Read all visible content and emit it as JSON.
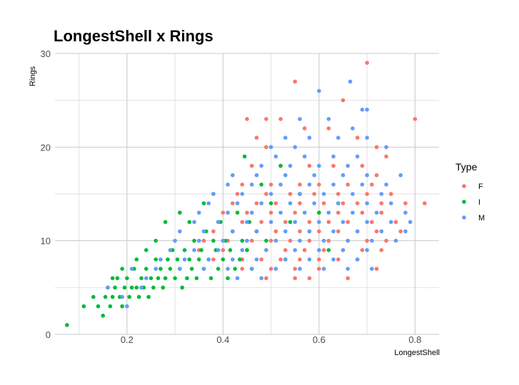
{
  "chart_data": {
    "type": "scatter",
    "title": "LongestShell x Rings",
    "xlabel": "LongestShell",
    "ylabel": "Rings",
    "xlim": [
      0.05,
      0.85
    ],
    "ylim": [
      0,
      30
    ],
    "x_ticks": [
      0.2,
      0.4,
      0.6,
      0.8
    ],
    "x_tick_labels": [
      "0.2",
      "0.4",
      "0.6",
      "0.8"
    ],
    "y_ticks": [
      0,
      10,
      20,
      30
    ],
    "y_tick_labels": [
      "0",
      "10",
      "20",
      "30"
    ],
    "grid": true,
    "legend": {
      "title": "Type",
      "position": "right"
    },
    "series": [
      {
        "name": "F",
        "color": "#f8766d",
        "points": [
          [
            0.55,
            27
          ],
          [
            0.7,
            29
          ],
          [
            0.8,
            23
          ],
          [
            0.82,
            14
          ],
          [
            0.65,
            25
          ],
          [
            0.45,
            23
          ],
          [
            0.49,
            23
          ],
          [
            0.52,
            23
          ],
          [
            0.47,
            21
          ],
          [
            0.49,
            20
          ],
          [
            0.57,
            22
          ],
          [
            0.62,
            22
          ],
          [
            0.68,
            21
          ],
          [
            0.72,
            20
          ],
          [
            0.74,
            19
          ],
          [
            0.46,
            18
          ],
          [
            0.52,
            18
          ],
          [
            0.58,
            18
          ],
          [
            0.63,
            18
          ],
          [
            0.69,
            18
          ],
          [
            0.72,
            17
          ],
          [
            0.44,
            16
          ],
          [
            0.5,
            16
          ],
          [
            0.56,
            16
          ],
          [
            0.6,
            16
          ],
          [
            0.66,
            16
          ],
          [
            0.71,
            16
          ],
          [
            0.43,
            15
          ],
          [
            0.49,
            15
          ],
          [
            0.54,
            15
          ],
          [
            0.59,
            15
          ],
          [
            0.64,
            15
          ],
          [
            0.7,
            15
          ],
          [
            0.75,
            15
          ],
          [
            0.42,
            14
          ],
          [
            0.47,
            14
          ],
          [
            0.51,
            14
          ],
          [
            0.56,
            14
          ],
          [
            0.61,
            14
          ],
          [
            0.65,
            14
          ],
          [
            0.68,
            14
          ],
          [
            0.73,
            14
          ],
          [
            0.78,
            14
          ],
          [
            0.4,
            13
          ],
          [
            0.45,
            13
          ],
          [
            0.5,
            13
          ],
          [
            0.55,
            13
          ],
          [
            0.6,
            13
          ],
          [
            0.64,
            13
          ],
          [
            0.69,
            13
          ],
          [
            0.73,
            13
          ],
          [
            0.39,
            12
          ],
          [
            0.44,
            12
          ],
          [
            0.48,
            12
          ],
          [
            0.53,
            12
          ],
          [
            0.58,
            12
          ],
          [
            0.62,
            12
          ],
          [
            0.66,
            12
          ],
          [
            0.71,
            12
          ],
          [
            0.76,
            12
          ],
          [
            0.38,
            11
          ],
          [
            0.42,
            11
          ],
          [
            0.47,
            11
          ],
          [
            0.51,
            11
          ],
          [
            0.56,
            11
          ],
          [
            0.6,
            11
          ],
          [
            0.64,
            11
          ],
          [
            0.68,
            11
          ],
          [
            0.72,
            11
          ],
          [
            0.77,
            11
          ],
          [
            0.36,
            10
          ],
          [
            0.41,
            10
          ],
          [
            0.46,
            10
          ],
          [
            0.5,
            10
          ],
          [
            0.54,
            10
          ],
          [
            0.58,
            10
          ],
          [
            0.62,
            10
          ],
          [
            0.66,
            10
          ],
          [
            0.7,
            10
          ],
          [
            0.74,
            10
          ],
          [
            0.35,
            9
          ],
          [
            0.4,
            9
          ],
          [
            0.45,
            9
          ],
          [
            0.49,
            9
          ],
          [
            0.53,
            9
          ],
          [
            0.57,
            9
          ],
          [
            0.61,
            9
          ],
          [
            0.65,
            9
          ],
          [
            0.69,
            9
          ],
          [
            0.73,
            9
          ],
          [
            0.38,
            8
          ],
          [
            0.44,
            8
          ],
          [
            0.48,
            8
          ],
          [
            0.52,
            8
          ],
          [
            0.56,
            8
          ],
          [
            0.6,
            8
          ],
          [
            0.64,
            8
          ],
          [
            0.68,
            8
          ],
          [
            0.72,
            7
          ],
          [
            0.44,
            7
          ],
          [
            0.5,
            7
          ],
          [
            0.55,
            7
          ],
          [
            0.6,
            7
          ],
          [
            0.49,
            6
          ],
          [
            0.55,
            6
          ],
          [
            0.66,
            6
          ],
          [
            0.58,
            6
          ]
        ]
      },
      {
        "name": "I",
        "color": "#00ba38",
        "points": [
          [
            0.075,
            1
          ],
          [
            0.11,
            3
          ],
          [
            0.13,
            4
          ],
          [
            0.14,
            3
          ],
          [
            0.15,
            2
          ],
          [
            0.155,
            4
          ],
          [
            0.16,
            5
          ],
          [
            0.165,
            3
          ],
          [
            0.17,
            4
          ],
          [
            0.175,
            5
          ],
          [
            0.18,
            6
          ],
          [
            0.185,
            4
          ],
          [
            0.19,
            3
          ],
          [
            0.195,
            5
          ],
          [
            0.2,
            6
          ],
          [
            0.205,
            4
          ],
          [
            0.21,
            5
          ],
          [
            0.215,
            7
          ],
          [
            0.22,
            5
          ],
          [
            0.225,
            4
          ],
          [
            0.23,
            6
          ],
          [
            0.235,
            5
          ],
          [
            0.24,
            7
          ],
          [
            0.245,
            4
          ],
          [
            0.25,
            6
          ],
          [
            0.255,
            5
          ],
          [
            0.26,
            8
          ],
          [
            0.265,
            6
          ],
          [
            0.27,
            7
          ],
          [
            0.275,
            5
          ],
          [
            0.28,
            6
          ],
          [
            0.285,
            8
          ],
          [
            0.29,
            7
          ],
          [
            0.295,
            9
          ],
          [
            0.3,
            6
          ],
          [
            0.305,
            8
          ],
          [
            0.31,
            7
          ],
          [
            0.315,
            5
          ],
          [
            0.32,
            9
          ],
          [
            0.325,
            6
          ],
          [
            0.33,
            8
          ],
          [
            0.335,
            7
          ],
          [
            0.34,
            10
          ],
          [
            0.345,
            6
          ],
          [
            0.35,
            8
          ],
          [
            0.355,
            9
          ],
          [
            0.36,
            7
          ],
          [
            0.365,
            11
          ],
          [
            0.37,
            8
          ],
          [
            0.375,
            6
          ],
          [
            0.38,
            10
          ],
          [
            0.385,
            9
          ],
          [
            0.39,
            7
          ],
          [
            0.395,
            12
          ],
          [
            0.4,
            8
          ],
          [
            0.405,
            10
          ],
          [
            0.41,
            6
          ],
          [
            0.415,
            9
          ],
          [
            0.42,
            11
          ],
          [
            0.425,
            7
          ],
          [
            0.43,
            13
          ],
          [
            0.435,
            8
          ],
          [
            0.44,
            10
          ],
          [
            0.445,
            19
          ],
          [
            0.45,
            9
          ],
          [
            0.455,
            12
          ],
          [
            0.46,
            7
          ],
          [
            0.47,
            11
          ],
          [
            0.48,
            16
          ],
          [
            0.49,
            10
          ],
          [
            0.5,
            14
          ],
          [
            0.52,
            18
          ],
          [
            0.53,
            8
          ],
          [
            0.54,
            12
          ],
          [
            0.56,
            15
          ],
          [
            0.58,
            11
          ],
          [
            0.6,
            13
          ],
          [
            0.62,
            9
          ],
          [
            0.64,
            14
          ],
          [
            0.31,
            13
          ],
          [
            0.28,
            12
          ],
          [
            0.24,
            9
          ],
          [
            0.22,
            8
          ],
          [
            0.19,
            7
          ],
          [
            0.17,
            6
          ],
          [
            0.26,
            10
          ],
          [
            0.33,
            12
          ],
          [
            0.36,
            14
          ],
          [
            0.38,
            15
          ]
        ]
      },
      {
        "name": "M",
        "color": "#619cff",
        "points": [
          [
            0.6,
            26
          ],
          [
            0.665,
            27
          ],
          [
            0.69,
            24
          ],
          [
            0.7,
            24
          ],
          [
            0.56,
            23
          ],
          [
            0.62,
            23
          ],
          [
            0.67,
            22
          ],
          [
            0.53,
            21
          ],
          [
            0.58,
            21
          ],
          [
            0.64,
            21
          ],
          [
            0.7,
            21
          ],
          [
            0.74,
            20
          ],
          [
            0.5,
            20
          ],
          [
            0.55,
            20
          ],
          [
            0.51,
            19
          ],
          [
            0.57,
            19
          ],
          [
            0.63,
            19
          ],
          [
            0.68,
            19
          ],
          [
            0.48,
            18
          ],
          [
            0.54,
            18
          ],
          [
            0.6,
            18
          ],
          [
            0.66,
            18
          ],
          [
            0.42,
            17
          ],
          [
            0.47,
            17
          ],
          [
            0.53,
            17
          ],
          [
            0.59,
            17
          ],
          [
            0.65,
            17
          ],
          [
            0.7,
            17
          ],
          [
            0.77,
            17
          ],
          [
            0.41,
            16
          ],
          [
            0.46,
            16
          ],
          [
            0.52,
            16
          ],
          [
            0.58,
            16
          ],
          [
            0.63,
            16
          ],
          [
            0.69,
            16
          ],
          [
            0.74,
            16
          ],
          [
            0.38,
            15
          ],
          [
            0.44,
            15
          ],
          [
            0.5,
            15
          ],
          [
            0.56,
            15
          ],
          [
            0.61,
            15
          ],
          [
            0.67,
            15
          ],
          [
            0.73,
            15
          ],
          [
            0.37,
            14
          ],
          [
            0.43,
            14
          ],
          [
            0.48,
            14
          ],
          [
            0.54,
            14
          ],
          [
            0.59,
            14
          ],
          [
            0.64,
            14
          ],
          [
            0.7,
            14
          ],
          [
            0.75,
            14
          ],
          [
            0.35,
            13
          ],
          [
            0.41,
            13
          ],
          [
            0.46,
            13
          ],
          [
            0.52,
            13
          ],
          [
            0.57,
            13
          ],
          [
            0.62,
            13
          ],
          [
            0.67,
            13
          ],
          [
            0.72,
            13
          ],
          [
            0.78,
            13
          ],
          [
            0.34,
            12
          ],
          [
            0.39,
            12
          ],
          [
            0.45,
            12
          ],
          [
            0.5,
            12
          ],
          [
            0.55,
            12
          ],
          [
            0.6,
            12
          ],
          [
            0.65,
            12
          ],
          [
            0.7,
            12
          ],
          [
            0.75,
            12
          ],
          [
            0.79,
            12
          ],
          [
            0.31,
            11
          ],
          [
            0.36,
            11
          ],
          [
            0.42,
            11
          ],
          [
            0.47,
            11
          ],
          [
            0.53,
            11
          ],
          [
            0.58,
            11
          ],
          [
            0.63,
            11
          ],
          [
            0.68,
            11
          ],
          [
            0.73,
            11
          ],
          [
            0.78,
            11
          ],
          [
            0.3,
            10
          ],
          [
            0.35,
            10
          ],
          [
            0.4,
            10
          ],
          [
            0.45,
            10
          ],
          [
            0.51,
            10
          ],
          [
            0.56,
            10
          ],
          [
            0.61,
            10
          ],
          [
            0.66,
            10
          ],
          [
            0.71,
            10
          ],
          [
            0.76,
            10
          ],
          [
            0.29,
            9
          ],
          [
            0.34,
            9
          ],
          [
            0.39,
            9
          ],
          [
            0.44,
            9
          ],
          [
            0.49,
            9
          ],
          [
            0.55,
            9
          ],
          [
            0.6,
            9
          ],
          [
            0.65,
            9
          ],
          [
            0.7,
            9
          ],
          [
            0.27,
            8
          ],
          [
            0.32,
            8
          ],
          [
            0.37,
            8
          ],
          [
            0.42,
            8
          ],
          [
            0.47,
            8
          ],
          [
            0.53,
            8
          ],
          [
            0.58,
            8
          ],
          [
            0.63,
            8
          ],
          [
            0.68,
            8
          ],
          [
            0.26,
            7
          ],
          [
            0.31,
            7
          ],
          [
            0.36,
            7
          ],
          [
            0.41,
            7
          ],
          [
            0.46,
            7
          ],
          [
            0.51,
            7
          ],
          [
            0.56,
            7
          ],
          [
            0.61,
            7
          ],
          [
            0.66,
            7
          ],
          [
            0.71,
            7
          ],
          [
            0.16,
            5
          ],
          [
            0.21,
            7
          ],
          [
            0.24,
            6
          ],
          [
            0.19,
            4
          ],
          [
            0.2,
            3
          ],
          [
            0.23,
            5
          ],
          [
            0.43,
            6
          ],
          [
            0.48,
            6
          ]
        ]
      }
    ]
  }
}
